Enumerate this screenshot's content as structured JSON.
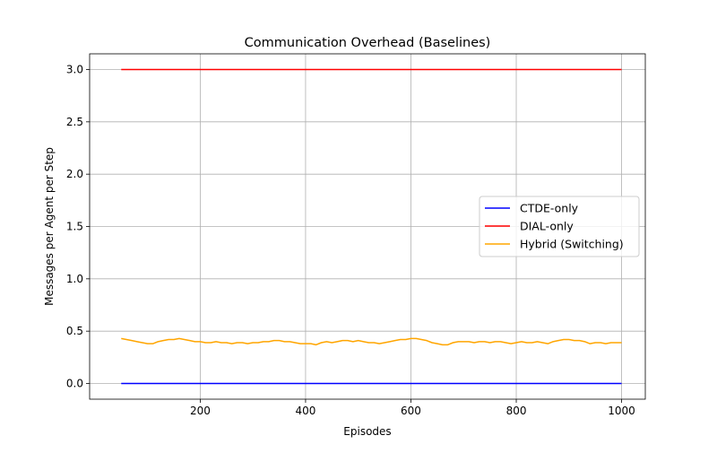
{
  "chart_data": {
    "type": "line",
    "title": "Communication Overhead (Baselines)",
    "xlabel": "Episodes",
    "ylabel": "Messages per Agent per Step",
    "xlim": [
      -10,
      1045
    ],
    "ylim": [
      -0.15,
      3.15
    ],
    "xticks": [
      200,
      400,
      600,
      800,
      1000
    ],
    "xtick_labels": [
      "200",
      "400",
      "600",
      "800",
      "1000"
    ],
    "yticks": [
      0.0,
      0.5,
      1.0,
      1.5,
      2.0,
      2.5,
      3.0
    ],
    "ytick_labels": [
      "0.0",
      "0.5",
      "1.0",
      "1.5",
      "2.0",
      "2.5",
      "3.0"
    ],
    "grid": true,
    "legend": {
      "position": "center-right",
      "entries": [
        "CTDE-only",
        "DIAL-only",
        "Hybrid (Switching)"
      ]
    },
    "series": [
      {
        "name": "CTDE-only",
        "color": "#0000ff",
        "x": [
          50,
          1000
        ],
        "y": [
          0.0,
          0.0
        ]
      },
      {
        "name": "DIAL-only",
        "color": "#ff0000",
        "x": [
          50,
          1000
        ],
        "y": [
          3.0,
          3.0
        ]
      },
      {
        "name": "Hybrid (Switching)",
        "color": "#ffa500",
        "x": [
          50,
          60,
          70,
          80,
          90,
          100,
          110,
          120,
          130,
          140,
          150,
          160,
          170,
          180,
          190,
          200,
          210,
          220,
          230,
          240,
          250,
          260,
          270,
          280,
          290,
          300,
          310,
          320,
          330,
          340,
          350,
          360,
          370,
          380,
          390,
          400,
          410,
          420,
          430,
          440,
          450,
          460,
          470,
          480,
          490,
          500,
          510,
          520,
          530,
          540,
          550,
          560,
          570,
          580,
          590,
          600,
          610,
          620,
          630,
          640,
          650,
          660,
          670,
          680,
          690,
          700,
          710,
          720,
          730,
          740,
          750,
          760,
          770,
          780,
          790,
          800,
          810,
          820,
          830,
          840,
          850,
          860,
          870,
          880,
          890,
          900,
          910,
          920,
          930,
          940,
          950,
          960,
          970,
          980,
          990,
          1000
        ],
        "y": [
          0.43,
          0.42,
          0.41,
          0.4,
          0.39,
          0.38,
          0.38,
          0.4,
          0.41,
          0.42,
          0.42,
          0.43,
          0.42,
          0.41,
          0.4,
          0.4,
          0.39,
          0.39,
          0.4,
          0.39,
          0.39,
          0.38,
          0.39,
          0.39,
          0.38,
          0.39,
          0.39,
          0.4,
          0.4,
          0.41,
          0.41,
          0.4,
          0.4,
          0.39,
          0.38,
          0.38,
          0.38,
          0.37,
          0.39,
          0.4,
          0.39,
          0.4,
          0.41,
          0.41,
          0.4,
          0.41,
          0.4,
          0.39,
          0.39,
          0.38,
          0.39,
          0.4,
          0.41,
          0.42,
          0.42,
          0.43,
          0.43,
          0.42,
          0.41,
          0.39,
          0.38,
          0.37,
          0.37,
          0.39,
          0.4,
          0.4,
          0.4,
          0.39,
          0.4,
          0.4,
          0.39,
          0.4,
          0.4,
          0.39,
          0.38,
          0.39,
          0.4,
          0.39,
          0.39,
          0.4,
          0.39,
          0.38,
          0.4,
          0.41,
          0.42,
          0.42,
          0.41,
          0.41,
          0.4,
          0.38,
          0.39,
          0.39,
          0.38,
          0.39,
          0.39,
          0.39
        ]
      }
    ]
  }
}
